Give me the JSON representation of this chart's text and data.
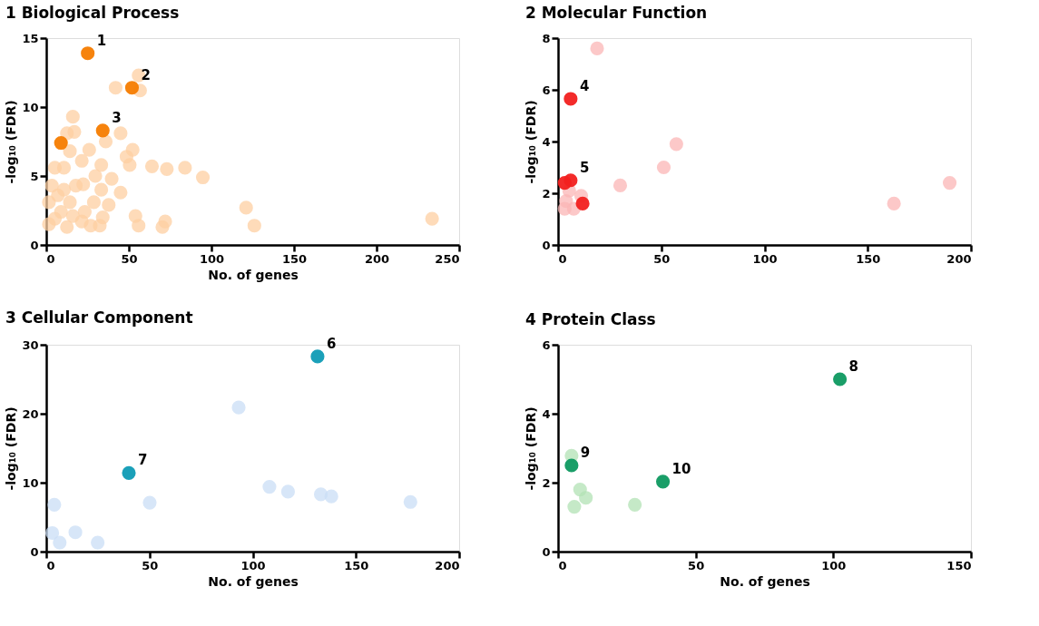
{
  "chart_data": [
    {
      "type": "scatter",
      "title": "1   Biological Process",
      "xlabel": "No. of genes",
      "ylabel": "-log₁₀ (FDR)",
      "xlim": [
        0,
        250
      ],
      "ylim": [
        0,
        15
      ],
      "xticks": [
        0,
        50,
        100,
        150,
        200,
        250
      ],
      "yticks": [
        0,
        5,
        10,
        15
      ],
      "marker": "circle",
      "series": [
        {
          "color": "#fdcfa2",
          "x": [
            55.9,
            56.8,
            42,
            16.1,
            12.5,
            17,
            45,
            36,
            14.3,
            26,
            52.3,
            48.6,
            21.5,
            50.5,
            64,
            73,
            84,
            94.8,
            33.3,
            5.2,
            10.7,
            29.7,
            39.6,
            45,
            33.3,
            17.9,
            22.4,
            3.4,
            7,
            10.7,
            14.3,
            1.6,
            5.2,
            8.9,
            16.1,
            21.5,
            26.9,
            32.4,
            34.2,
            37.8,
            54,
            55.9,
            70.3,
            72,
            121,
            126,
            233.6,
            1.6,
            12.5,
            23.3,
            28.8
          ],
          "values": [
            12.3,
            11.2,
            11.4,
            9.3,
            8.1,
            8.2,
            8.1,
            7.5,
            6.8,
            6.9,
            6.9,
            6.4,
            6.1,
            5.8,
            5.7,
            5.5,
            5.6,
            4.9,
            5.8,
            5.6,
            5.6,
            5,
            4.8,
            3.8,
            4,
            4.3,
            4.4,
            4.3,
            3.6,
            4,
            3.1,
            3.1,
            1.9,
            2.4,
            2.1,
            1.7,
            1.4,
            1.4,
            2,
            2.9,
            2.1,
            1.4,
            1.3,
            1.7,
            2.7,
            1.4,
            1.9,
            1.5,
            1.3,
            2.4,
            3.1
          ]
        },
        {
          "color": "#f57c00",
          "x": [
            25.1,
            51.9,
            34.2,
            8.9
          ],
          "values": [
            13.9,
            11.4,
            8.3,
            7.4
          ]
        }
      ],
      "annotations": [
        {
          "text": "1",
          "x": 25.1,
          "y": 13.9
        },
        {
          "text": "2",
          "x": 51.9,
          "y": 11.4
        },
        {
          "text": "3",
          "x": 34.2,
          "y": 8.3
        }
      ]
    },
    {
      "type": "scatter",
      "title": "2   Molecular Function",
      "ylabel": "-log₁₀ (FDR)",
      "xlim": [
        0,
        200
      ],
      "ylim": [
        0,
        8
      ],
      "xticks": [
        0,
        50,
        100,
        150,
        200
      ],
      "yticks": [
        0,
        2,
        4,
        6,
        8
      ],
      "marker": "circle",
      "series": [
        {
          "color": "#fbb5b5",
          "x": [
            18.9,
            30.1,
            51.2,
            57.3,
            3.9,
            7.6,
            11.2,
            3.2,
            5.4,
            162.7,
            189.7
          ],
          "values": [
            7.6,
            2.3,
            3.0,
            3.9,
            1.7,
            1.4,
            1.9,
            1.4,
            2.1,
            1.6,
            2.4
          ]
        },
        {
          "color": "#f2201f",
          "x": [
            6.1,
            6.1,
            11.9,
            3.2
          ],
          "values": [
            5.65,
            2.5,
            1.6,
            2.4
          ]
        }
      ],
      "annotations": [
        {
          "text": "4",
          "x": 6.1,
          "y": 5.65
        },
        {
          "text": "5",
          "x": 6.1,
          "y": 2.5
        }
      ]
    },
    {
      "type": "scatter",
      "title": "3   Cellular Component",
      "xlabel": "No. of genes",
      "ylabel": "-log₁₀ (FDR)",
      "xlim": [
        0,
        200
      ],
      "ylim": [
        0,
        30
      ],
      "xticks": [
        0,
        50,
        100,
        150,
        200
      ],
      "yticks": [
        0,
        10,
        20,
        30
      ],
      "marker": "circle",
      "series": [
        {
          "color": "#c9ddf6",
          "x": [
            93.2,
            3.9,
            50.1,
            108.1,
            117.1,
            133,
            138.1,
            176.4,
            2.9,
            6.5,
            14.1,
            24.9
          ],
          "values": [
            20.9,
            6.8,
            7.1,
            9.4,
            8.7,
            8.3,
            8.0,
            7.2,
            2.7,
            1.3,
            2.8,
            1.3
          ]
        },
        {
          "color": "#0f9bb5",
          "x": [
            131.4,
            40
          ],
          "values": [
            28.3,
            11.4
          ]
        }
      ],
      "annotations": [
        {
          "text": "6",
          "x": 131.4,
          "y": 28.3
        },
        {
          "text": "7",
          "x": 40,
          "y": 11.4
        }
      ]
    },
    {
      "type": "scatter",
      "title": "4   Protein Class",
      "xlabel": "No. of genes",
      "ylabel": "-log₁₀ (FDR)",
      "xlim": [
        0,
        150
      ],
      "ylim": [
        0,
        6
      ],
      "xticks": [
        0,
        50,
        100,
        150
      ],
      "yticks": [
        0,
        2,
        4,
        6
      ],
      "marker": "circle",
      "series": [
        {
          "color": "#b1e2b4",
          "x": [
            4.9,
            8,
            10.1,
            5.9,
            27.9
          ],
          "values": [
            2.78,
            1.8,
            1.56,
            1.3,
            1.36
          ]
        },
        {
          "color": "#0e9960",
          "x": [
            102.4,
            4.9,
            38.1
          ],
          "values": [
            5.0,
            2.5,
            2.03
          ]
        }
      ],
      "annotations": [
        {
          "text": "8",
          "x": 102.4,
          "y": 5.0
        },
        {
          "text": "9",
          "x": 4.9,
          "y": 2.5
        },
        {
          "text": "10",
          "x": 38.1,
          "y": 2.03
        }
      ]
    }
  ]
}
